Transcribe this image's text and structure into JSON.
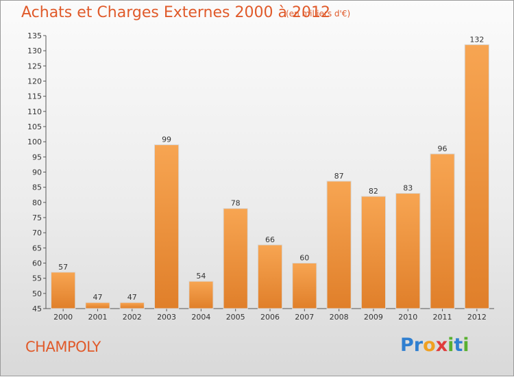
{
  "header": {
    "title": "Achats et Charges Externes 2000 à 2012",
    "subtitle": "(en milliers d'€)"
  },
  "footer": {
    "location": "CHAMPOLY",
    "brand_letters": [
      {
        "char": "P",
        "color": "#2f7fd0"
      },
      {
        "char": "r",
        "color": "#2f7fd0"
      },
      {
        "char": "o",
        "color": "#f0a020"
      },
      {
        "char": "x",
        "color": "#e03c3c"
      },
      {
        "char": "i",
        "color": "#58b030"
      },
      {
        "char": "t",
        "color": "#2f7fd0"
      },
      {
        "char": "i",
        "color": "#58b030"
      }
    ]
  },
  "colors": {
    "accent": "#e05a2a",
    "bar_light": "#f7a552",
    "bar_dark": "#e07f2a"
  },
  "chart_data": {
    "type": "bar",
    "title": "Achats et Charges Externes 2000 à 2012",
    "subtitle": "(en milliers d'€)",
    "xlabel": "",
    "ylabel": "",
    "categories": [
      "2000",
      "2001",
      "2002",
      "2003",
      "2004",
      "2005",
      "2006",
      "2007",
      "2008",
      "2009",
      "2010",
      "2011",
      "2012"
    ],
    "values": [
      57,
      47,
      47,
      99,
      54,
      78,
      66,
      60,
      87,
      82,
      83,
      96,
      132
    ],
    "ylim": [
      45,
      135
    ],
    "yticks": [
      45,
      50,
      55,
      60,
      65,
      70,
      75,
      80,
      85,
      90,
      95,
      100,
      105,
      110,
      115,
      120,
      125,
      130,
      135
    ],
    "grid": false,
    "legend": "none"
  }
}
